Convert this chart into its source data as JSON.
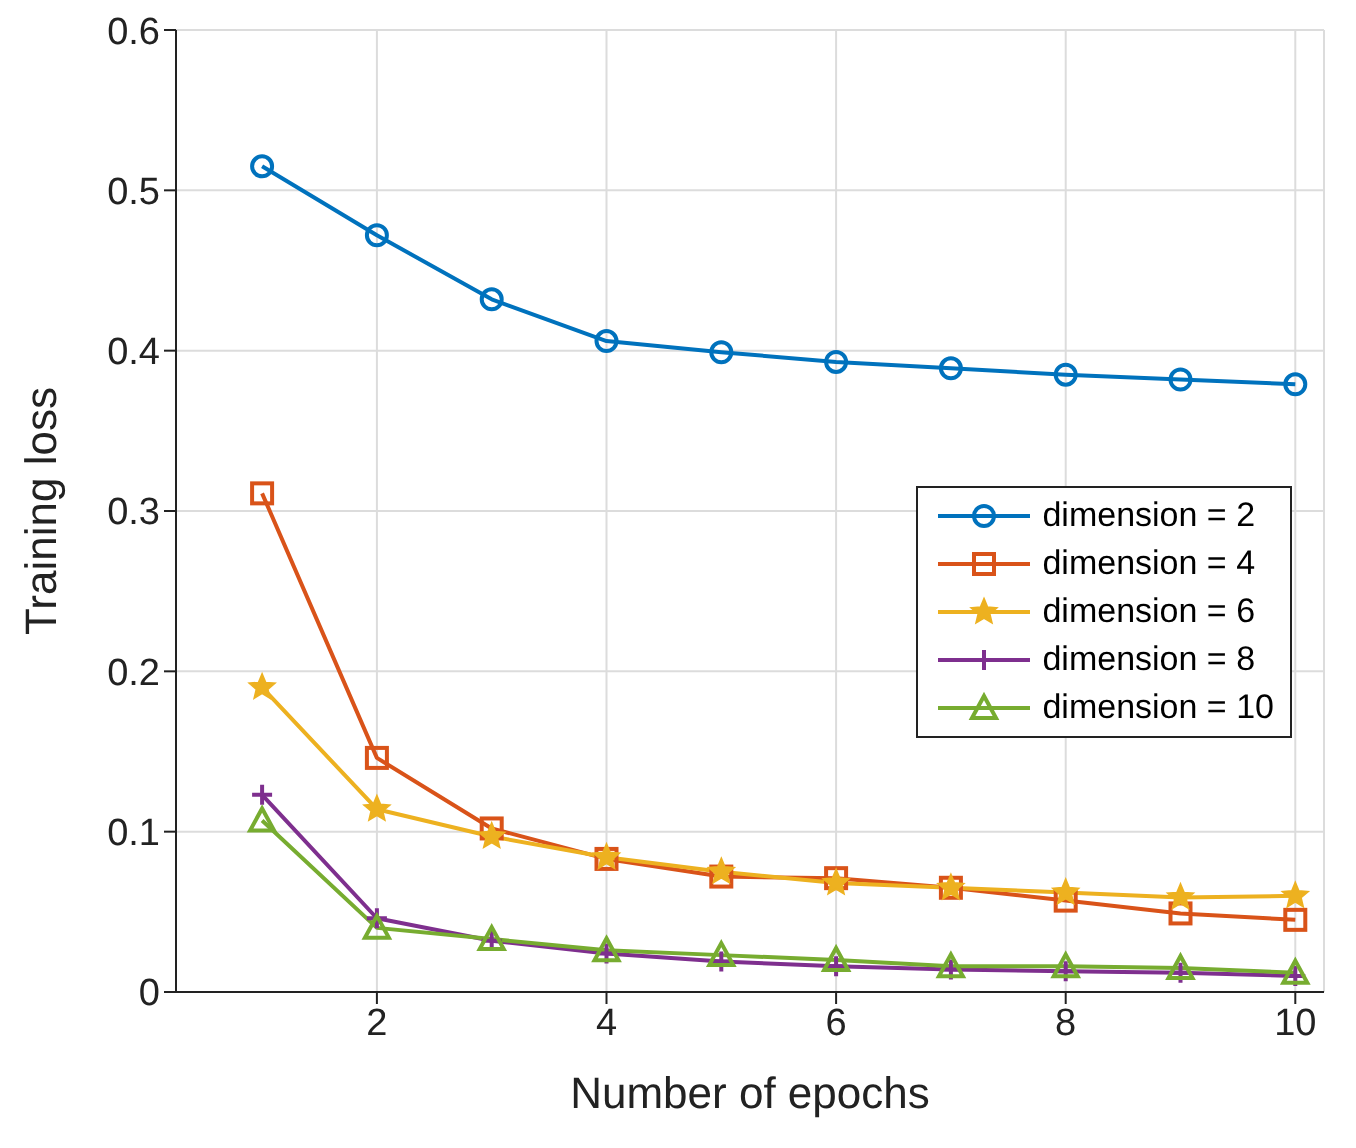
{
  "chart_data": {
    "type": "line",
    "xlabel": "Number of epochs",
    "ylabel": "Training loss",
    "x": [
      1,
      2,
      3,
      4,
      5,
      6,
      7,
      8,
      9,
      10
    ],
    "series": [
      {
        "name": "dimension = 2",
        "color": "#0072bd",
        "marker": "circle",
        "values": [
          0.515,
          0.472,
          0.432,
          0.406,
          0.399,
          0.393,
          0.389,
          0.385,
          0.382,
          0.379
        ]
      },
      {
        "name": "dimension = 4",
        "color": "#d95319",
        "marker": "square",
        "values": [
          0.311,
          0.146,
          0.102,
          0.083,
          0.072,
          0.071,
          0.065,
          0.057,
          0.049,
          0.045
        ]
      },
      {
        "name": "dimension = 6",
        "color": "#edb120",
        "marker": "star",
        "values": [
          0.19,
          0.114,
          0.097,
          0.084,
          0.075,
          0.068,
          0.065,
          0.062,
          0.059,
          0.06
        ]
      },
      {
        "name": "dimension = 8",
        "color": "#7e2f8e",
        "marker": "cross",
        "values": [
          0.123,
          0.046,
          0.032,
          0.024,
          0.019,
          0.016,
          0.014,
          0.013,
          0.012,
          0.01
        ]
      },
      {
        "name": "dimension = 10",
        "color": "#77ac30",
        "marker": "triangle",
        "values": [
          0.107,
          0.04,
          0.033,
          0.026,
          0.023,
          0.02,
          0.016,
          0.016,
          0.015,
          0.012
        ]
      }
    ],
    "xlim": [
      0.25,
      10.25
    ],
    "xticks": [
      2,
      4,
      6,
      8,
      10
    ],
    "ylim": [
      0,
      0.6
    ],
    "yticks": [
      0,
      0.1,
      0.2,
      0.3,
      0.4,
      0.5,
      0.6
    ],
    "grid": true,
    "legend": "right",
    "line_style": "solid"
  }
}
